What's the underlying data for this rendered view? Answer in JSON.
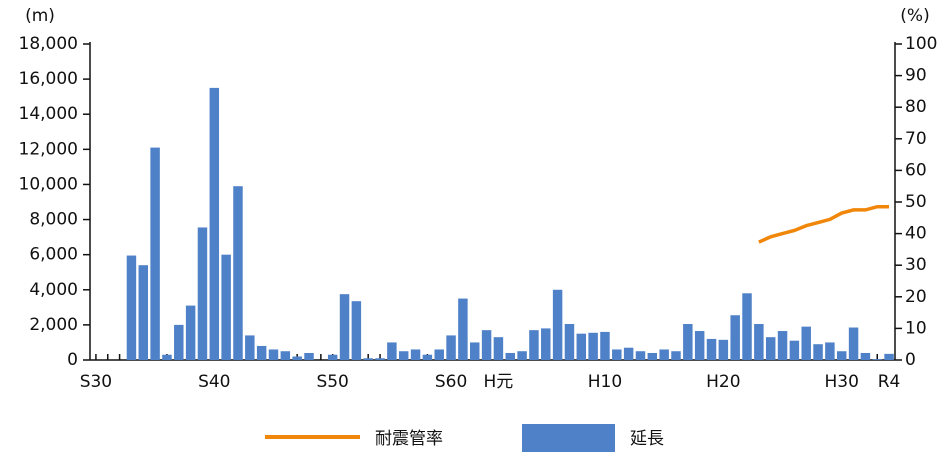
{
  "chart_data": {
    "type": "combo",
    "y_label": "(m)",
    "y2_label": "(%)",
    "categories": [
      "S30",
      null,
      null,
      null,
      null,
      null,
      null,
      null,
      null,
      null,
      "S40",
      null,
      null,
      null,
      null,
      null,
      null,
      null,
      null,
      null,
      "S50",
      null,
      null,
      null,
      null,
      null,
      null,
      null,
      null,
      null,
      "S60",
      null,
      null,
      null,
      "H元",
      null,
      null,
      null,
      null,
      null,
      null,
      null,
      null,
      "H10",
      null,
      null,
      null,
      null,
      null,
      null,
      null,
      null,
      null,
      "H20",
      null,
      null,
      null,
      null,
      null,
      null,
      null,
      null,
      null,
      "H30",
      null,
      null,
      null,
      "R4"
    ],
    "series": [
      {
        "name": "延長",
        "type": "bar",
        "color": "#4f81c8",
        "values": [
          0,
          0,
          0,
          5950,
          5400,
          12100,
          300,
          2000,
          3100,
          7550,
          15500,
          6000,
          9900,
          1400,
          800,
          600,
          500,
          200,
          400,
          0,
          300,
          3750,
          3350,
          100,
          100,
          1000,
          500,
          600,
          300,
          600,
          1400,
          3500,
          1000,
          1700,
          1300,
          400,
          500,
          1700,
          1800,
          4000,
          2050,
          1500,
          1550,
          1600,
          600,
          700,
          500,
          400,
          600,
          500,
          2050,
          1650,
          1200,
          1150,
          2550,
          3800,
          2050,
          1300,
          1650,
          1100,
          1900,
          900,
          1000,
          500,
          1850,
          400,
          50,
          350
        ]
      },
      {
        "name": "耐震管率",
        "type": "line",
        "axis": "y2",
        "color": "#f0870a",
        "values": [
          null,
          null,
          null,
          null,
          null,
          null,
          null,
          null,
          null,
          null,
          null,
          null,
          null,
          null,
          null,
          null,
          null,
          null,
          null,
          null,
          null,
          null,
          null,
          null,
          null,
          null,
          null,
          null,
          null,
          null,
          null,
          null,
          null,
          null,
          null,
          null,
          null,
          null,
          null,
          null,
          null,
          null,
          null,
          null,
          null,
          null,
          null,
          null,
          null,
          null,
          null,
          null,
          null,
          null,
          null,
          null,
          37.3,
          39,
          40,
          41,
          42.5,
          43.5,
          44.5,
          46.5,
          47.5,
          47.5,
          48.5,
          48.5
        ]
      }
    ],
    "ylim": [
      0,
      18000
    ],
    "yticks": [
      0,
      {
        "value": 2000,
        "label": "2,000"
      },
      {
        "value": 4000,
        "label": "4,000"
      },
      {
        "value": 6000,
        "label": "6,000"
      },
      {
        "value": 8000,
        "label": "8,000"
      },
      {
        "value": 10000,
        "label": "10,000"
      },
      {
        "value": 12000,
        "label": "12,000"
      },
      {
        "value": 14000,
        "label": "14,000"
      },
      {
        "value": 16000,
        "label": "16,000"
      },
      {
        "value": 18000,
        "label": "18,000"
      }
    ],
    "y2lim": [
      0,
      100
    ],
    "y2ticks": [
      0,
      10,
      20,
      30,
      40,
      50,
      60,
      70,
      80,
      90,
      100
    ]
  }
}
